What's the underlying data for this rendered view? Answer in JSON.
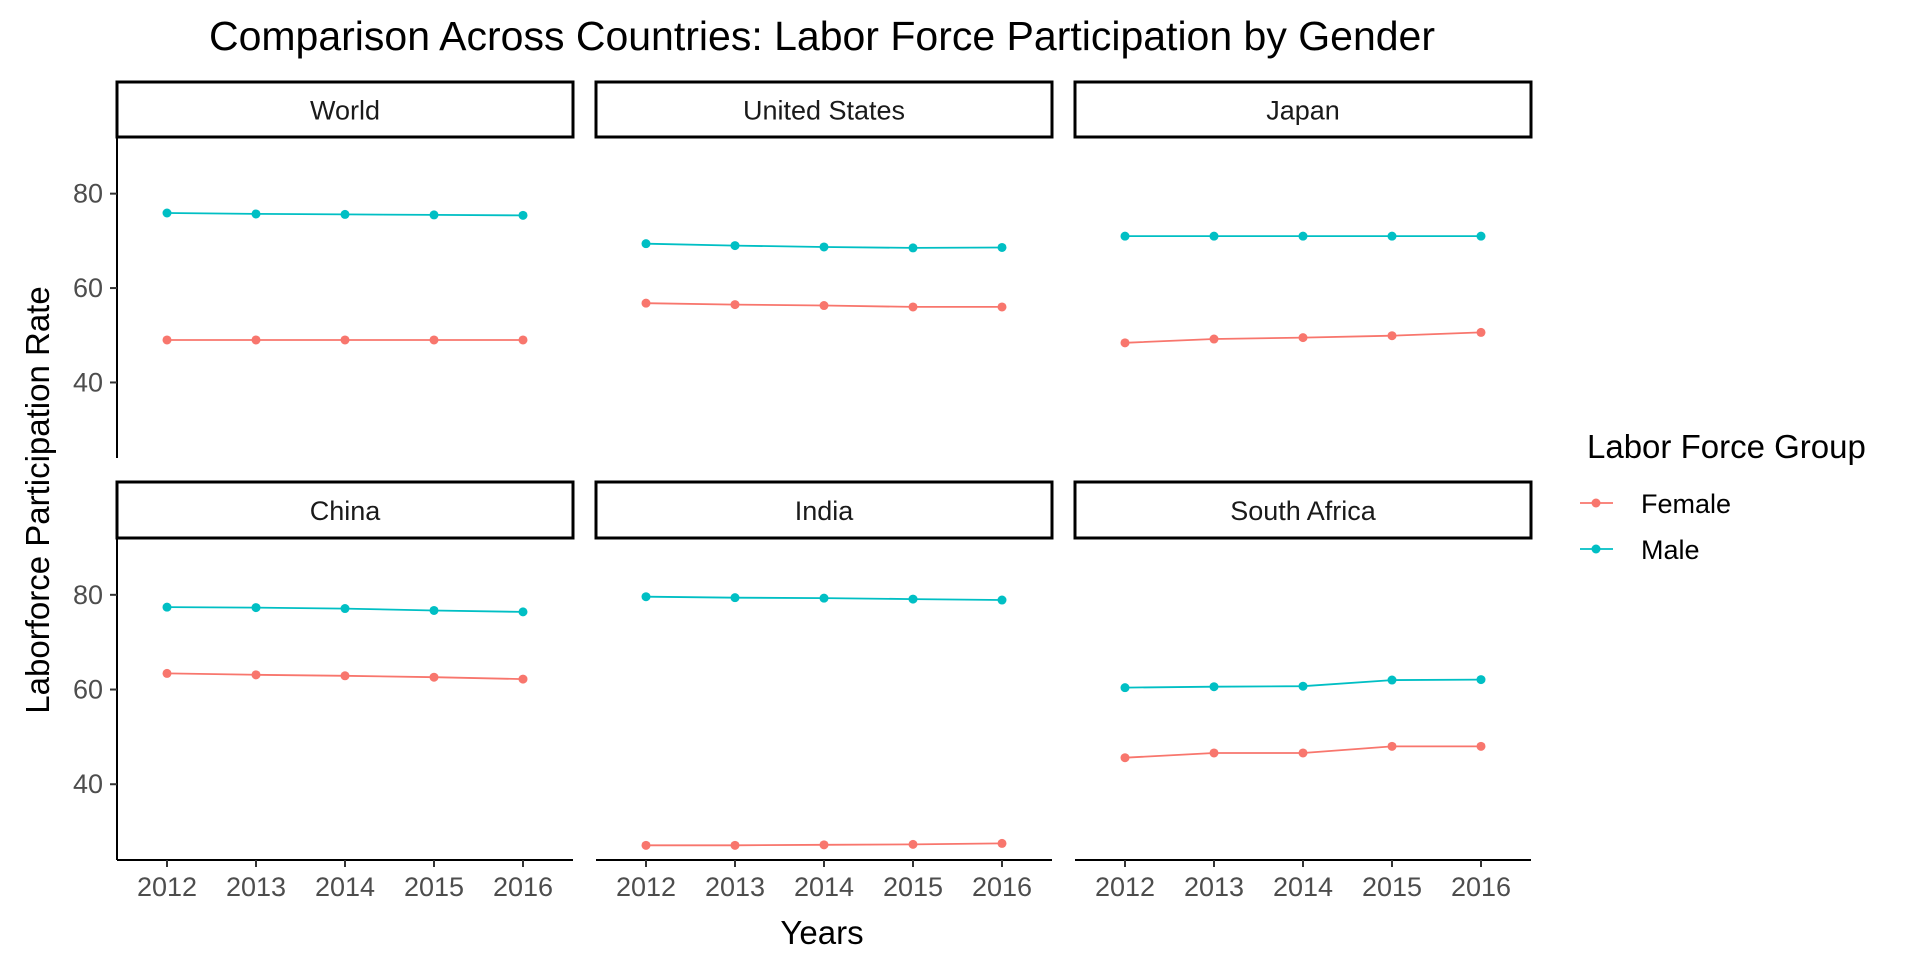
{
  "chart_data": {
    "type": "line",
    "title": "Comparison Across Countries: Labor Force Participation by Gender",
    "xlabel": "Years",
    "ylabel": "Laborforce Participation Rate",
    "x": [
      "2012",
      "2013",
      "2014",
      "2015",
      "2016"
    ],
    "y_ticks": [
      "40",
      "60",
      "80"
    ],
    "ylim": [
      24,
      92
    ],
    "legend": {
      "title": "Labor Force Group",
      "position": "right",
      "entries": [
        "Female",
        "Male"
      ]
    },
    "colors": {
      "Female": "#F8766D",
      "Male": "#00BFC4"
    },
    "panels": [
      {
        "name": "World",
        "series": [
          {
            "name": "Female",
            "values": [
              49.0,
              49.0,
              49.0,
              49.0,
              49.0
            ]
          },
          {
            "name": "Male",
            "values": [
              75.9,
              75.7,
              75.6,
              75.5,
              75.4
            ]
          }
        ]
      },
      {
        "name": "United States",
        "series": [
          {
            "name": "Female",
            "values": [
              56.8,
              56.5,
              56.3,
              56.0,
              56.0
            ]
          },
          {
            "name": "Male",
            "values": [
              69.4,
              69.0,
              68.7,
              68.5,
              68.6
            ]
          }
        ]
      },
      {
        "name": "Japan",
        "series": [
          {
            "name": "Female",
            "values": [
              48.4,
              49.2,
              49.5,
              49.9,
              50.6
            ]
          },
          {
            "name": "Male",
            "values": [
              71.0,
              71.0,
              71.0,
              71.0,
              71.0
            ]
          }
        ]
      },
      {
        "name": "China",
        "series": [
          {
            "name": "Female",
            "values": [
              63.4,
              63.1,
              62.9,
              62.6,
              62.2
            ]
          },
          {
            "name": "Male",
            "values": [
              77.4,
              77.3,
              77.1,
              76.7,
              76.4
            ]
          }
        ]
      },
      {
        "name": "India",
        "series": [
          {
            "name": "Female",
            "values": [
              27.1,
              27.1,
              27.2,
              27.3,
              27.5
            ]
          },
          {
            "name": "Male",
            "values": [
              79.6,
              79.4,
              79.3,
              79.1,
              78.9
            ]
          }
        ]
      },
      {
        "name": "South Africa",
        "series": [
          {
            "name": "Female",
            "values": [
              45.6,
              46.6,
              46.6,
              48.0,
              48.0
            ]
          },
          {
            "name": "Male",
            "values": [
              60.4,
              60.6,
              60.7,
              62.0,
              62.1
            ]
          }
        ]
      }
    ]
  }
}
